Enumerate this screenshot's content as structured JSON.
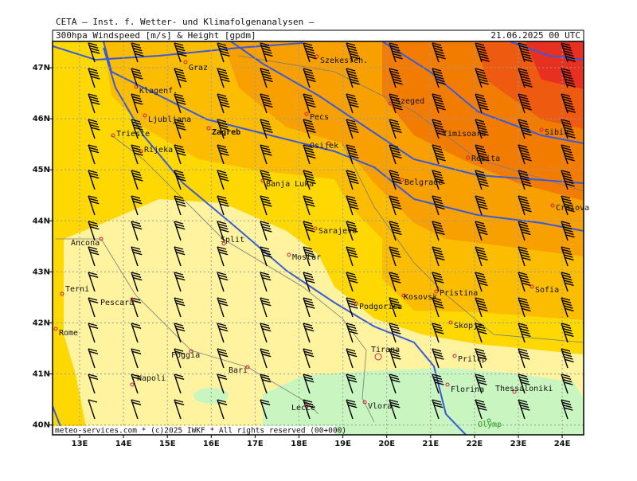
{
  "header": {
    "institute": "CETA — Inst. f. Wetter- und Klimafolgenanalysen —",
    "title": "300hpa Windspeed [m/s] & Height [gpdm]",
    "datetime": "21.06.2025 00 UTC"
  },
  "map": {
    "xticks": [
      {
        "value": 13,
        "label": "13E"
      },
      {
        "value": 14,
        "label": "14E"
      },
      {
        "value": 15,
        "label": "15E"
      },
      {
        "value": 16,
        "label": "16E"
      },
      {
        "value": 17,
        "label": "17E"
      },
      {
        "value": 18,
        "label": "18E"
      },
      {
        "value": 19,
        "label": "19E"
      },
      {
        "value": 20,
        "label": "20E"
      },
      {
        "value": 21,
        "label": "21E"
      },
      {
        "value": 22,
        "label": "22E"
      },
      {
        "value": 23,
        "label": "23E"
      },
      {
        "value": 24,
        "label": "24E"
      }
    ],
    "yticks": [
      {
        "value": 47,
        "label": "47N"
      },
      {
        "value": 46,
        "label": "46N"
      },
      {
        "value": 45,
        "label": "45N"
      },
      {
        "value": 44,
        "label": "44N"
      },
      {
        "value": 43,
        "label": "43N"
      },
      {
        "value": 42,
        "label": "42N"
      },
      {
        "value": 41,
        "label": "41N"
      },
      {
        "value": 40,
        "label": "40N"
      }
    ],
    "cities": [
      "Graz",
      "Klagenf.",
      "Ljubljana",
      "Zagreb",
      "Trieste",
      "Rijeka",
      "Szekesfeh.",
      "Szeged",
      "Pecs",
      "Osijek",
      "Timisoara",
      "Sibiu",
      "Resita",
      "Belgrade",
      "Craiova",
      "Banja Luka",
      "Sarajevo",
      "Split",
      "Mostar",
      "Ancona",
      "Terni",
      "Pescara",
      "Rome",
      "Podgorica",
      "Kosovsk",
      "Pristina",
      "Sofia",
      "Skopje",
      "Foggia",
      "Bari",
      "Tirana",
      "Prilep",
      "Napoli",
      "Florina",
      "Thessaloniki",
      "Vlora",
      "Lecce",
      "Olymp"
    ]
  },
  "footer": "meteo-services.com * (c)2025 IWKF * All rights reserved (00+000)"
}
